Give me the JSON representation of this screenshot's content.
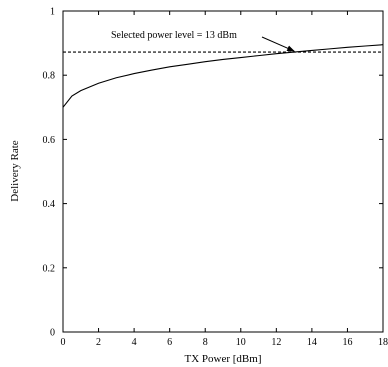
{
  "chart_data": {
    "type": "line",
    "title": "",
    "xlabel": "TX Power [dBm]",
    "ylabel": "Delivery Rate",
    "xlim": [
      0,
      18
    ],
    "ylim": [
      0,
      1
    ],
    "xticks": [
      "0",
      "2",
      "4",
      "6",
      "8",
      "10",
      "12",
      "14",
      "16",
      "18"
    ],
    "yticks": [
      "0",
      "0.2",
      "0.4",
      "0.6",
      "0.8",
      "1"
    ],
    "grid": false,
    "series": [
      {
        "style": "solid",
        "x": [
          0,
          0.5,
          1,
          2,
          3,
          4,
          5,
          6,
          7,
          8,
          9,
          10,
          11,
          12,
          13,
          14,
          15,
          16,
          17,
          18
        ],
        "y": [
          0.7,
          0.735,
          0.752,
          0.775,
          0.792,
          0.805,
          0.816,
          0.826,
          0.834,
          0.842,
          0.849,
          0.855,
          0.861,
          0.867,
          0.872,
          0.877,
          0.882,
          0.887,
          0.891,
          0.895
        ]
      },
      {
        "style": "dashed",
        "x": [
          0,
          18
        ],
        "y": [
          0.872,
          0.872
        ]
      }
    ],
    "annotations": [
      {
        "text": "Selected power level = 13 dBm",
        "arrow_to": {
          "x": 13,
          "y": 0.872
        }
      }
    ]
  }
}
